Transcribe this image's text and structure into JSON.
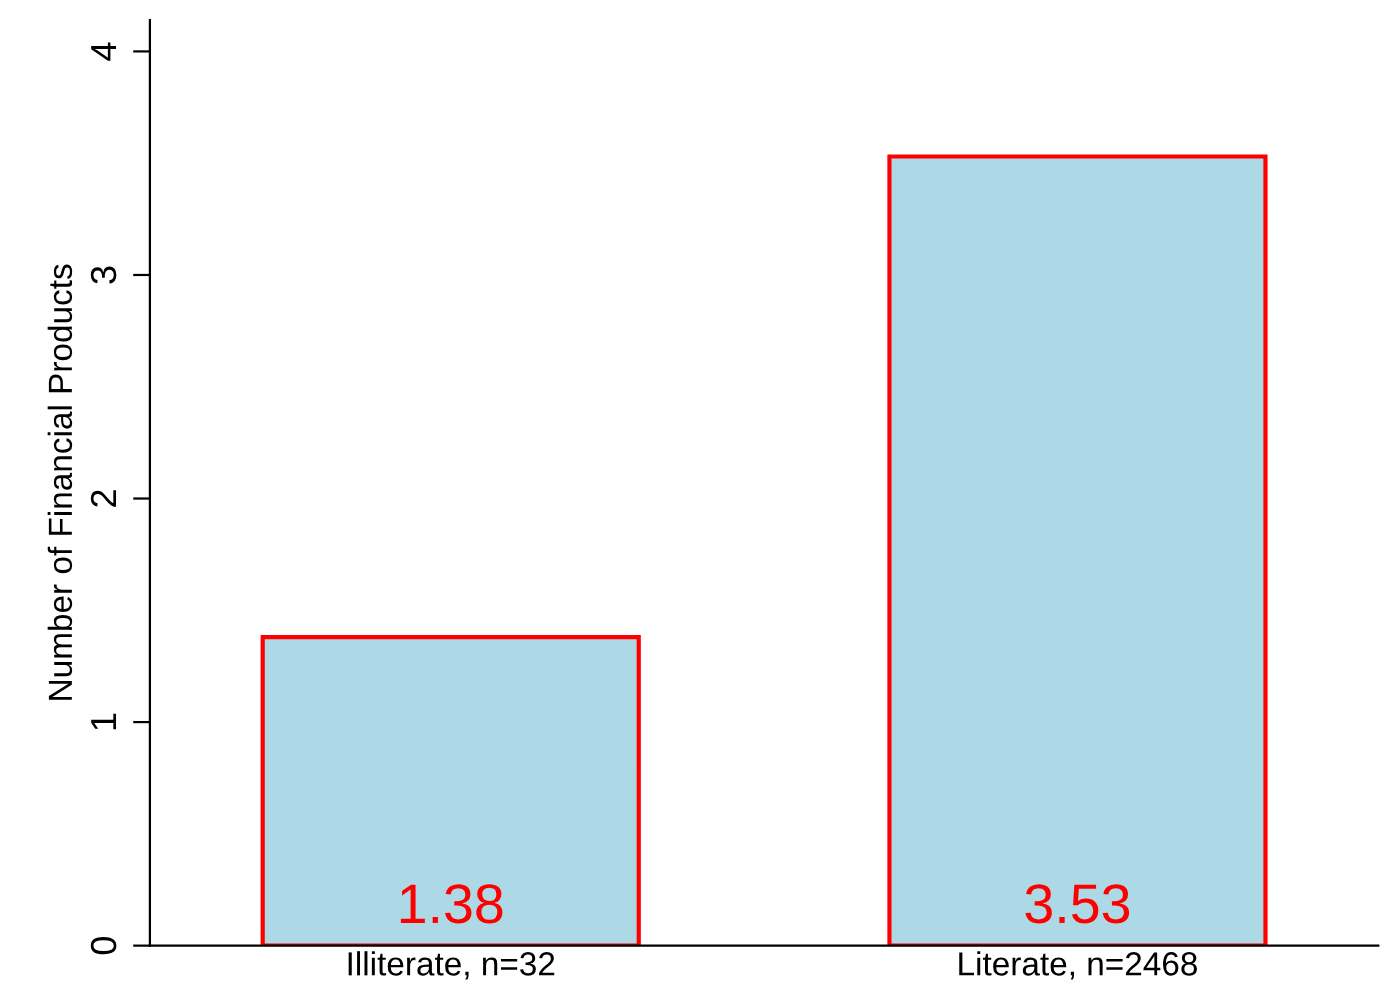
{
  "chart_data": {
    "type": "bar",
    "ylabel": "Number of Financial Products",
    "categories": [
      "Illiterate, n=32",
      "Literate, n=2468"
    ],
    "values": [
      1.38,
      3.53
    ],
    "color": "#add8e6",
    "data_labels": true,
    "ylim": [
      0,
      4.14
    ],
    "yticks": [
      0,
      1,
      2,
      3,
      4
    ],
    "grid": false,
    "legend": false
  }
}
